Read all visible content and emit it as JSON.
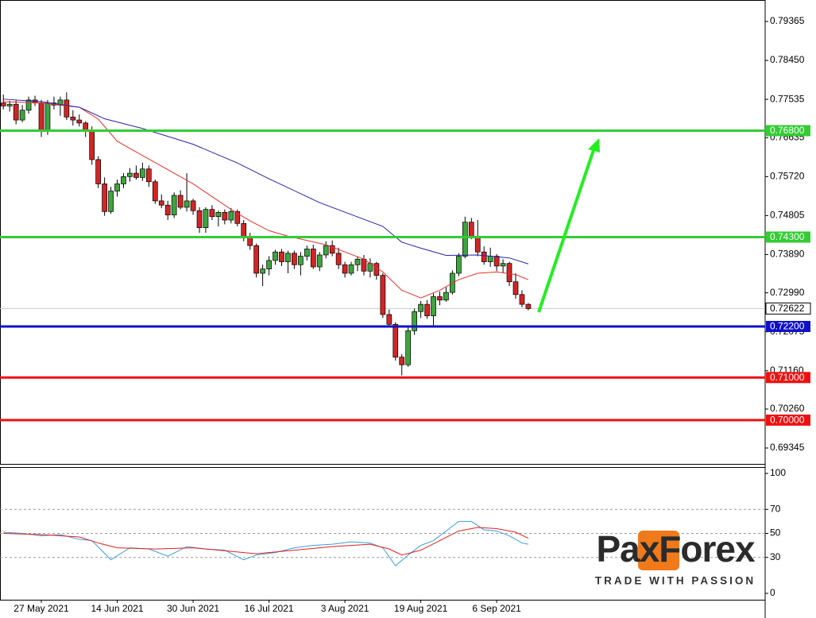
{
  "chart_data": [
    {
      "type": "candlestick",
      "categories": [
        null,
        null,
        null,
        null,
        null,
        null,
        "27 May 2021",
        null,
        null,
        null,
        null,
        null,
        null,
        null,
        null,
        null,
        null,
        null,
        "14 Jun 2021",
        null,
        null,
        null,
        null,
        null,
        null,
        null,
        null,
        null,
        null,
        null,
        "30 Jun 2021",
        null,
        null,
        null,
        null,
        null,
        null,
        null,
        null,
        null,
        null,
        null,
        "16 Jul 2021",
        null,
        null,
        null,
        null,
        null,
        null,
        null,
        null,
        null,
        null,
        null,
        "3 Aug 2021",
        null,
        null,
        null,
        null,
        null,
        null,
        null,
        null,
        null,
        null,
        null,
        "19 Aug 2021",
        null,
        null,
        null,
        null,
        null,
        null,
        null,
        null,
        null,
        null,
        null,
        "6 Sep 2021",
        null,
        null,
        null,
        null,
        null
      ],
      "open": [
        0.7745,
        0.7738,
        0.7742,
        0.7705,
        0.7728,
        0.7752,
        0.7745,
        0.768,
        0.7745,
        0.774,
        0.7752,
        0.7712,
        0.7705,
        0.7698,
        0.7678,
        0.7612,
        0.7555,
        0.749,
        0.7538,
        0.7555,
        0.7572,
        0.758,
        0.757,
        0.759,
        0.756,
        0.7515,
        0.7505,
        0.7482,
        0.7528,
        0.75,
        0.7515,
        0.7492,
        0.7452,
        0.7495,
        0.7478,
        0.7488,
        0.747,
        0.749,
        0.7462,
        0.743,
        0.741,
        0.7345,
        0.7355,
        0.7375,
        0.7395,
        0.7372,
        0.7392,
        0.7365,
        0.7385,
        0.7402,
        0.736,
        0.7388,
        0.741,
        0.7392,
        0.7365,
        0.7345,
        0.7365,
        0.7378,
        0.735,
        0.7368,
        0.734,
        0.7248,
        0.7225,
        0.7148,
        0.713,
        0.721,
        0.7255,
        0.7272,
        0.7245,
        0.729,
        0.7282,
        0.73,
        0.7345,
        0.7385,
        0.7465,
        0.7432,
        0.7395,
        0.7372,
        0.7385,
        0.7362,
        0.7368,
        0.7325,
        0.7295,
        0.7272
      ],
      "high": [
        0.7765,
        0.775,
        0.7752,
        0.774,
        0.776,
        0.7762,
        0.7752,
        0.7752,
        0.776,
        0.776,
        0.777,
        0.7728,
        0.7718,
        0.7702,
        0.769,
        0.762,
        0.757,
        0.7548,
        0.7565,
        0.758,
        0.7592,
        0.7598,
        0.7605,
        0.7598,
        0.7565,
        0.753,
        0.7515,
        0.7535,
        0.754,
        0.758,
        0.752,
        0.75,
        0.75,
        0.7505,
        0.7492,
        0.7495,
        0.7498,
        0.7495,
        0.747,
        0.744,
        0.7415,
        0.7365,
        0.7385,
        0.74,
        0.7402,
        0.7398,
        0.7398,
        0.7395,
        0.741,
        0.7412,
        0.7395,
        0.742,
        0.7422,
        0.7405,
        0.7372,
        0.7372,
        0.7385,
        0.7388,
        0.738,
        0.7372,
        0.7345,
        0.726,
        0.723,
        0.7155,
        0.7218,
        0.7262,
        0.728,
        0.7282,
        0.7298,
        0.7302,
        0.7312,
        0.7352,
        0.7392,
        0.7478,
        0.7475,
        0.747,
        0.7408,
        0.7405,
        0.739,
        0.7378,
        0.7372,
        0.7345,
        0.7305,
        0.7275
      ],
      "low": [
        0.773,
        0.7725,
        0.7695,
        0.77,
        0.772,
        0.7738,
        0.7665,
        0.767,
        0.773,
        0.7715,
        0.7705,
        0.7692,
        0.769,
        0.7665,
        0.76,
        0.7545,
        0.748,
        0.7485,
        0.7525,
        0.7545,
        0.756,
        0.7565,
        0.7562,
        0.7548,
        0.7508,
        0.7498,
        0.747,
        0.7475,
        0.7495,
        0.749,
        0.7482,
        0.744,
        0.744,
        0.747,
        0.7455,
        0.746,
        0.7462,
        0.7455,
        0.742,
        0.74,
        0.7335,
        0.7315,
        0.734,
        0.7365,
        0.7362,
        0.7345,
        0.7355,
        0.734,
        0.7375,
        0.7355,
        0.735,
        0.738,
        0.7385,
        0.7355,
        0.7335,
        0.734,
        0.735,
        0.734,
        0.7335,
        0.733,
        0.724,
        0.7218,
        0.714,
        0.7105,
        0.7125,
        0.72,
        0.724,
        0.7238,
        0.722,
        0.727,
        0.7278,
        0.7295,
        0.7338,
        0.738,
        0.7425,
        0.7385,
        0.7365,
        0.736,
        0.735,
        0.7345,
        0.7315,
        0.7285,
        0.7265,
        0.7258
      ],
      "close": [
        0.7738,
        0.7742,
        0.7705,
        0.7728,
        0.7752,
        0.7745,
        0.768,
        0.7745,
        0.774,
        0.7752,
        0.7712,
        0.7705,
        0.7698,
        0.7678,
        0.7612,
        0.7555,
        0.749,
        0.7538,
        0.7555,
        0.7572,
        0.758,
        0.757,
        0.759,
        0.756,
        0.7515,
        0.7505,
        0.7482,
        0.7528,
        0.75,
        0.7515,
        0.7492,
        0.7452,
        0.7495,
        0.7478,
        0.7488,
        0.747,
        0.749,
        0.7462,
        0.743,
        0.741,
        0.7345,
        0.7355,
        0.7375,
        0.7395,
        0.7372,
        0.7392,
        0.7365,
        0.7385,
        0.7402,
        0.736,
        0.7388,
        0.741,
        0.7392,
        0.7365,
        0.7345,
        0.7365,
        0.7378,
        0.735,
        0.7368,
        0.734,
        0.7248,
        0.7225,
        0.7148,
        0.713,
        0.721,
        0.7255,
        0.7272,
        0.7245,
        0.729,
        0.7282,
        0.73,
        0.7345,
        0.7385,
        0.7465,
        0.7432,
        0.7395,
        0.7372,
        0.7385,
        0.7362,
        0.7368,
        0.7325,
        0.7295,
        0.7272,
        0.7262
      ],
      "colors": {
        "up": "#3da53d",
        "down": "#d42424"
      },
      "lines": [
        {
          "color": "#e8302a",
          "x": [
            0,
            6,
            12,
            15,
            18,
            21,
            24,
            27,
            30,
            33,
            36,
            39,
            42,
            45,
            48,
            51,
            54,
            57,
            60,
            63,
            66,
            69,
            72,
            75,
            78,
            81,
            83
          ],
          "values": [
            0.7748,
            0.7745,
            0.7735,
            0.7707,
            0.7655,
            0.763,
            0.7605,
            0.758,
            0.7555,
            0.7525,
            0.7495,
            0.7468,
            0.7445,
            0.7432,
            0.7422,
            0.7412,
            0.7395,
            0.7378,
            0.7348,
            0.7305,
            0.7287,
            0.7305,
            0.733,
            0.7345,
            0.7348,
            0.7342,
            0.733
          ]
        },
        {
          "color": "#2424a8",
          "x": [
            0,
            6,
            12,
            16,
            22,
            30,
            37,
            42,
            50,
            55,
            60,
            63,
            66,
            70,
            75,
            80,
            83
          ],
          "values": [
            0.7754,
            0.7748,
            0.7735,
            0.7708,
            0.7685,
            0.7648,
            0.7604,
            0.7567,
            0.7511,
            0.7483,
            0.7455,
            0.7418,
            0.7404,
            0.7387,
            0.7388,
            0.7381,
            0.7367
          ]
        }
      ],
      "levels": [
        {
          "value": 0.768,
          "label": "0.76800",
          "color": "#33cc33"
        },
        {
          "value": 0.743,
          "label": "0.74300",
          "color": "#33cc33"
        },
        {
          "value": 0.722,
          "label": "0.72200",
          "color": "#1010c8"
        },
        {
          "value": 0.71,
          "label": "0.71000",
          "color": "#ee1111"
        },
        {
          "value": 0.7,
          "label": "0.70000",
          "color": "#ee1111"
        }
      ],
      "last_price": {
        "value": 0.72622,
        "label": "0.72622"
      },
      "ylim": [
        0.68953,
        0.79869
      ],
      "yticks": [
        0.79365,
        {
          "value": 0.7845,
          "label": "0.78450"
        },
        0.77535,
        0.76635,
        {
          "value": 0.7572,
          "label": "0.75720"
        },
        0.74805,
        {
          "value": 0.7389,
          "label": "0.73890"
        },
        {
          "value": 0.7299,
          "label": "0.72990"
        },
        0.72075,
        {
          "value": 0.7116,
          "label": "0.71160"
        },
        {
          "value": 0.7026,
          "label": "0.70260"
        },
        0.69345
      ]
    },
    {
      "type": "line",
      "series": [
        {
          "color": "#3a9de0",
          "x": [
            0,
            3,
            6,
            9,
            12,
            14,
            17,
            20,
            23,
            26,
            29,
            32,
            35,
            38,
            40,
            43,
            46,
            49,
            52,
            55,
            58,
            60,
            62,
            64,
            66,
            68,
            70,
            72,
            74,
            76,
            78,
            80,
            82,
            83
          ],
          "values": [
            51,
            50,
            48,
            49,
            45,
            44,
            28,
            38,
            37,
            31,
            39,
            37,
            36,
            28,
            32,
            34,
            38,
            40,
            41,
            43,
            42,
            38,
            23,
            32,
            40,
            44,
            52,
            60,
            60,
            53,
            52,
            48,
            42,
            41
          ]
        },
        {
          "color": "#e02020",
          "x": [
            0,
            6,
            12,
            15,
            18,
            24,
            30,
            36,
            40,
            46,
            52,
            58,
            61,
            63,
            66,
            69,
            72,
            75,
            78,
            81,
            83
          ],
          "values": [
            50,
            49,
            47,
            42,
            38,
            37,
            38,
            35,
            33,
            36,
            39,
            41,
            37,
            32,
            36,
            44,
            52,
            55,
            54,
            51,
            46
          ]
        }
      ],
      "levels": [
        70,
        50,
        30
      ],
      "ylim": [
        -5.3,
        105.3
      ],
      "yticks": [
        100,
        70,
        50,
        30,
        0
      ]
    }
  ],
  "logo": {
    "brand": "PaxForex",
    "tagline": "TRADE WITH PASSION"
  }
}
